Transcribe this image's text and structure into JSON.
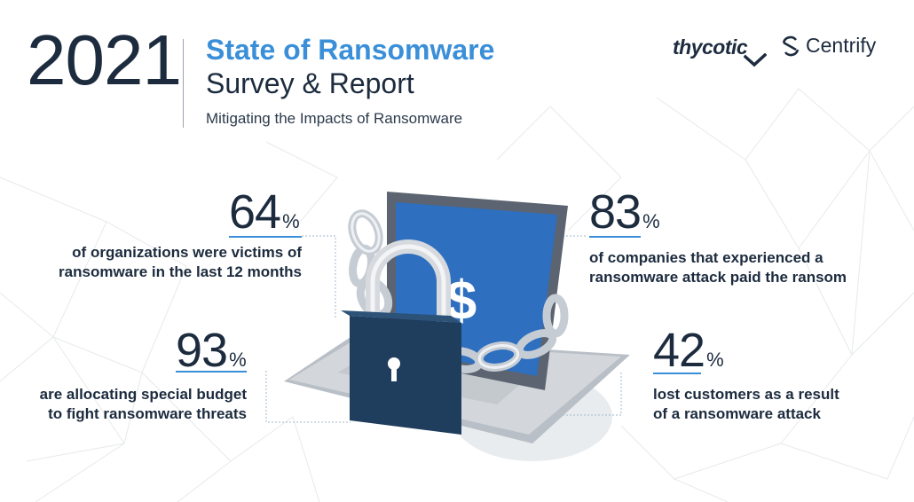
{
  "header": {
    "year": "2021",
    "title_line1": "State of Ransomware",
    "title_line2": "Survey & Report",
    "subtitle": "Mitigating the Impacts of Ransomware"
  },
  "logos": {
    "thycotic": "thycotic",
    "centrify": "Centrify"
  },
  "stats": [
    {
      "value": "64",
      "unit": "%",
      "text_line1": "of organizations were victims of",
      "text_line2": "ransomware in the last 12 months"
    },
    {
      "value": "93",
      "unit": "%",
      "text_line1": "are allocating special budget",
      "text_line2": "to fight ransomware threats"
    },
    {
      "value": "83",
      "unit": "%",
      "text_line1": "of companies that experienced a",
      "text_line2": "ransomware attack paid the ransom"
    },
    {
      "value": "42",
      "unit": "%",
      "text_line1": "lost customers as a result",
      "text_line2": "of a ransomware attack"
    }
  ],
  "colors": {
    "accent": "#3a8fd8",
    "navy": "#1c2b3e",
    "screen_blue": "#2e6fc0",
    "lock_navy": "#1f3d5c"
  },
  "icons": {
    "screen": "dollar-icon",
    "lock": "padlock-icon",
    "chain": "chain-icon"
  },
  "screen_symbol": "$"
}
